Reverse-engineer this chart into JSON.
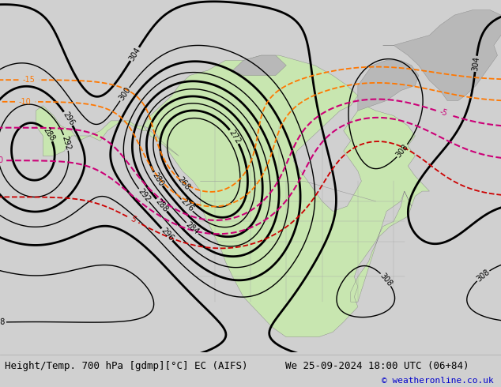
{
  "title_left": "Height/Temp. 700 hPa [gdmp][°C] EC (AIFS)",
  "title_right": "We 25-09-2024 18:00 UTC (06+84)",
  "copyright": "© weatheronline.co.uk",
  "bg_color": "#d0d0d0",
  "land_color": "#c8e6b0",
  "ocean_color": "#d8d8d8",
  "gray_land_color": "#b8b8b8",
  "height_contour_color": "#000000",
  "temp_red_color": "#cc0000",
  "temp_orange_color": "#ff7700",
  "temp_magenta_color": "#cc0077",
  "fig_width": 6.34,
  "fig_height": 4.9,
  "dpi": 100,
  "bottom_bar_color": "#d8d8d8",
  "title_fontsize": 9,
  "copyright_color": "#0000cc",
  "copyright_fontsize": 8
}
